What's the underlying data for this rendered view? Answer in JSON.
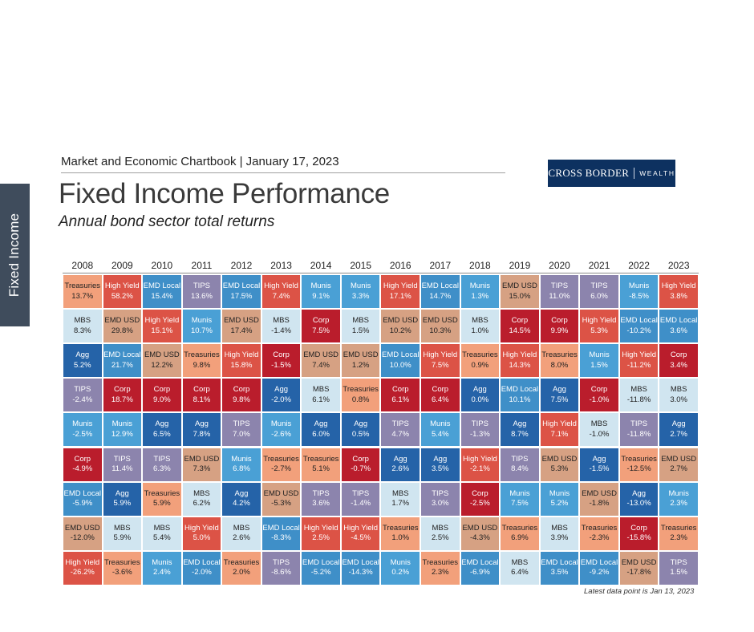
{
  "side_tab": "Fixed Income",
  "header": {
    "chartbook": "Market and Economic Chartbook | January 17, 2023",
    "title": "Fixed Income Performance",
    "subtitle": "Annual bond sector total returns"
  },
  "logo": {
    "left": "CROSS BORDER",
    "right": "WEALTH"
  },
  "footnote": "Latest data point is Jan 13, 2023",
  "colors": {
    "Treasuries": "#f2a07b",
    "High Yield": "#dc5346",
    "EMD Local": "#3f8fc8",
    "TIPS": "#8c84ad",
    "Munis": "#4aa0d5",
    "EMD USD": "#d6a183",
    "MBS": "#d0e5f0",
    "Corp": "#ba1d2c",
    "Agg": "#2563a8"
  },
  "text_dark_sectors": [
    "Treasuries",
    "MBS",
    "EMD USD"
  ],
  "chart_data": {
    "type": "table",
    "years": [
      "2008",
      "2009",
      "2010",
      "2011",
      "2012",
      "2013",
      "2014",
      "2015",
      "2016",
      "2017",
      "2018",
      "2019",
      "2020",
      "2021",
      "2022",
      "2023"
    ],
    "columns": [
      [
        [
          "Treasuries",
          "13.7%"
        ],
        [
          "MBS",
          "8.3%"
        ],
        [
          "Agg",
          "5.2%"
        ],
        [
          "TIPS",
          "-2.4%"
        ],
        [
          "Munis",
          "-2.5%"
        ],
        [
          "Corp",
          "-4.9%"
        ],
        [
          "EMD Local",
          "-5.9%"
        ],
        [
          "EMD USD",
          "-12.0%"
        ],
        [
          "High Yield",
          "-26.2%"
        ]
      ],
      [
        [
          "High Yield",
          "58.2%"
        ],
        [
          "EMD USD",
          "29.8%"
        ],
        [
          "EMD Local",
          "21.7%"
        ],
        [
          "Corp",
          "18.7%"
        ],
        [
          "Munis",
          "12.9%"
        ],
        [
          "TIPS",
          "11.4%"
        ],
        [
          "Agg",
          "5.9%"
        ],
        [
          "MBS",
          "5.9%"
        ],
        [
          "Treasuries",
          "-3.6%"
        ]
      ],
      [
        [
          "EMD Local",
          "15.4%"
        ],
        [
          "High Yield",
          "15.1%"
        ],
        [
          "EMD USD",
          "12.2%"
        ],
        [
          "Corp",
          "9.0%"
        ],
        [
          "Agg",
          "6.5%"
        ],
        [
          "TIPS",
          "6.3%"
        ],
        [
          "Treasuries",
          "5.9%"
        ],
        [
          "MBS",
          "5.4%"
        ],
        [
          "Munis",
          "2.4%"
        ]
      ],
      [
        [
          "TIPS",
          "13.6%"
        ],
        [
          "Munis",
          "10.7%"
        ],
        [
          "Treasuries",
          "9.8%"
        ],
        [
          "Corp",
          "8.1%"
        ],
        [
          "Agg",
          "7.8%"
        ],
        [
          "EMD USD",
          "7.3%"
        ],
        [
          "MBS",
          "6.2%"
        ],
        [
          "High Yield",
          "5.0%"
        ],
        [
          "EMD Local",
          "-2.0%"
        ]
      ],
      [
        [
          "EMD Local",
          "17.5%"
        ],
        [
          "EMD USD",
          "17.4%"
        ],
        [
          "High Yield",
          "15.8%"
        ],
        [
          "Corp",
          "9.8%"
        ],
        [
          "TIPS",
          "7.0%"
        ],
        [
          "Munis",
          "6.8%"
        ],
        [
          "Agg",
          "4.2%"
        ],
        [
          "MBS",
          "2.6%"
        ],
        [
          "Treasuries",
          "2.0%"
        ]
      ],
      [
        [
          "High Yield",
          "7.4%"
        ],
        [
          "MBS",
          "-1.4%"
        ],
        [
          "Corp",
          "-1.5%"
        ],
        [
          "Agg",
          "-2.0%"
        ],
        [
          "Munis",
          "-2.6%"
        ],
        [
          "Treasuries",
          "-2.7%"
        ],
        [
          "EMD USD",
          "-5.3%"
        ],
        [
          "EMD Local",
          "-8.3%"
        ],
        [
          "TIPS",
          "-8.6%"
        ]
      ],
      [
        [
          "Munis",
          "9.1%"
        ],
        [
          "Corp",
          "7.5%"
        ],
        [
          "EMD USD",
          "7.4%"
        ],
        [
          "MBS",
          "6.1%"
        ],
        [
          "Agg",
          "6.0%"
        ],
        [
          "Treasuries",
          "5.1%"
        ],
        [
          "TIPS",
          "3.6%"
        ],
        [
          "High Yield",
          "2.5%"
        ],
        [
          "EMD Local",
          "-5.2%"
        ]
      ],
      [
        [
          "Munis",
          "3.3%"
        ],
        [
          "MBS",
          "1.5%"
        ],
        [
          "EMD USD",
          "1.2%"
        ],
        [
          "Treasuries",
          "0.8%"
        ],
        [
          "Agg",
          "0.5%"
        ],
        [
          "Corp",
          "-0.7%"
        ],
        [
          "TIPS",
          "-1.4%"
        ],
        [
          "High Yield",
          "-4.5%"
        ],
        [
          "EMD Local",
          "-14.3%"
        ]
      ],
      [
        [
          "High Yield",
          "17.1%"
        ],
        [
          "EMD USD",
          "10.2%"
        ],
        [
          "EMD Local",
          "10.0%"
        ],
        [
          "Corp",
          "6.1%"
        ],
        [
          "TIPS",
          "4.7%"
        ],
        [
          "Agg",
          "2.6%"
        ],
        [
          "MBS",
          "1.7%"
        ],
        [
          "Treasuries",
          "1.0%"
        ],
        [
          "Munis",
          "0.2%"
        ]
      ],
      [
        [
          "EMD Local",
          "14.7%"
        ],
        [
          "EMD USD",
          "10.3%"
        ],
        [
          "High Yield",
          "7.5%"
        ],
        [
          "Corp",
          "6.4%"
        ],
        [
          "Munis",
          "5.4%"
        ],
        [
          "Agg",
          "3.5%"
        ],
        [
          "TIPS",
          "3.0%"
        ],
        [
          "MBS",
          "2.5%"
        ],
        [
          "Treasuries",
          "2.3%"
        ]
      ],
      [
        [
          "Munis",
          "1.3%"
        ],
        [
          "MBS",
          "1.0%"
        ],
        [
          "Treasuries",
          "0.9%"
        ],
        [
          "Agg",
          "0.0%"
        ],
        [
          "TIPS",
          "-1.3%"
        ],
        [
          "High Yield",
          "-2.1%"
        ],
        [
          "Corp",
          "-2.5%"
        ],
        [
          "EMD USD",
          "-4.3%"
        ],
        [
          "EMD Local",
          "-6.9%"
        ]
      ],
      [
        [
          "EMD USD",
          "15.0%"
        ],
        [
          "Corp",
          "14.5%"
        ],
        [
          "High Yield",
          "14.3%"
        ],
        [
          "EMD Local",
          "10.1%"
        ],
        [
          "Agg",
          "8.7%"
        ],
        [
          "TIPS",
          "8.4%"
        ],
        [
          "Munis",
          "7.5%"
        ],
        [
          "Treasuries",
          "6.9%"
        ],
        [
          "MBS",
          "6.4%"
        ]
      ],
      [
        [
          "TIPS",
          "11.0%"
        ],
        [
          "Corp",
          "9.9%"
        ],
        [
          "Treasuries",
          "8.0%"
        ],
        [
          "Agg",
          "7.5%"
        ],
        [
          "High Yield",
          "7.1%"
        ],
        [
          "EMD USD",
          "5.3%"
        ],
        [
          "Munis",
          "5.2%"
        ],
        [
          "MBS",
          "3.9%"
        ],
        [
          "EMD Local",
          "3.5%"
        ]
      ],
      [
        [
          "TIPS",
          "6.0%"
        ],
        [
          "High Yield",
          "5.3%"
        ],
        [
          "Munis",
          "1.5%"
        ],
        [
          "Corp",
          "-1.0%"
        ],
        [
          "MBS",
          "-1.0%"
        ],
        [
          "Agg",
          "-1.5%"
        ],
        [
          "EMD USD",
          "-1.8%"
        ],
        [
          "Treasuries",
          "-2.3%"
        ],
        [
          "EMD Local",
          "-9.2%"
        ]
      ],
      [
        [
          "Munis",
          "-8.5%"
        ],
        [
          "EMD Local",
          "-10.2%"
        ],
        [
          "High Yield",
          "-11.2%"
        ],
        [
          "MBS",
          "-11.8%"
        ],
        [
          "TIPS",
          "-11.8%"
        ],
        [
          "Treasuries",
          "-12.5%"
        ],
        [
          "Agg",
          "-13.0%"
        ],
        [
          "Corp",
          "-15.8%"
        ],
        [
          "EMD USD",
          "-17.8%"
        ]
      ],
      [
        [
          "High Yield",
          "3.8%"
        ],
        [
          "EMD Local",
          "3.6%"
        ],
        [
          "Corp",
          "3.4%"
        ],
        [
          "MBS",
          "3.0%"
        ],
        [
          "Agg",
          "2.7%"
        ],
        [
          "EMD USD",
          "2.7%"
        ],
        [
          "Munis",
          "2.3%"
        ],
        [
          "Treasuries",
          "2.3%"
        ],
        [
          "TIPS",
          "1.5%"
        ]
      ]
    ]
  }
}
